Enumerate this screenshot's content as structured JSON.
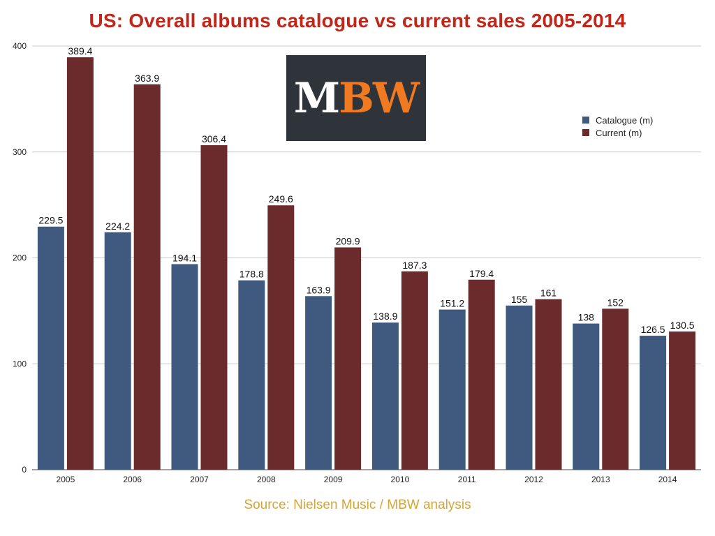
{
  "logo": {
    "part1": "M",
    "part2": "BW",
    "part1_color": "#ffffff",
    "part2_color": "#f07a22"
  },
  "source": "Source: Nielsen Music / MBW analysis",
  "chart_data": {
    "type": "bar",
    "title": "US: Overall albums catalogue vs current sales 2005-2014",
    "xlabel": "",
    "ylabel": "",
    "categories": [
      "2005",
      "2006",
      "2007",
      "2008",
      "2009",
      "2010",
      "2011",
      "2012",
      "2013",
      "2014"
    ],
    "series": [
      {
        "name": "Catalogue (m)",
        "color": "#3f5a7e",
        "values": [
          229.5,
          224.2,
          194.1,
          178.8,
          163.9,
          138.9,
          151.2,
          155,
          138,
          126.5
        ],
        "labels": [
          "229.5",
          "224.2",
          "194.1",
          "178.8",
          "163.9",
          "138.9",
          "151.2",
          "155",
          "138",
          "126.5"
        ]
      },
      {
        "name": "Current (m)",
        "color": "#6b2a2c",
        "values": [
          389.4,
          363.9,
          306.4,
          249.6,
          209.9,
          187.3,
          179.4,
          161,
          152,
          130.5
        ],
        "labels": [
          "389.4",
          "363.9",
          "306.4",
          "249.6",
          "209.9",
          "187.3",
          "179.4",
          "161",
          "152",
          "130.5"
        ]
      }
    ],
    "ylim": [
      0,
      400
    ],
    "yticks": [
      0,
      100,
      200,
      300,
      400
    ],
    "ytick_labels": [
      "0",
      "100",
      "200",
      "300",
      "400"
    ],
    "grid": true,
    "legend_position": "right"
  }
}
